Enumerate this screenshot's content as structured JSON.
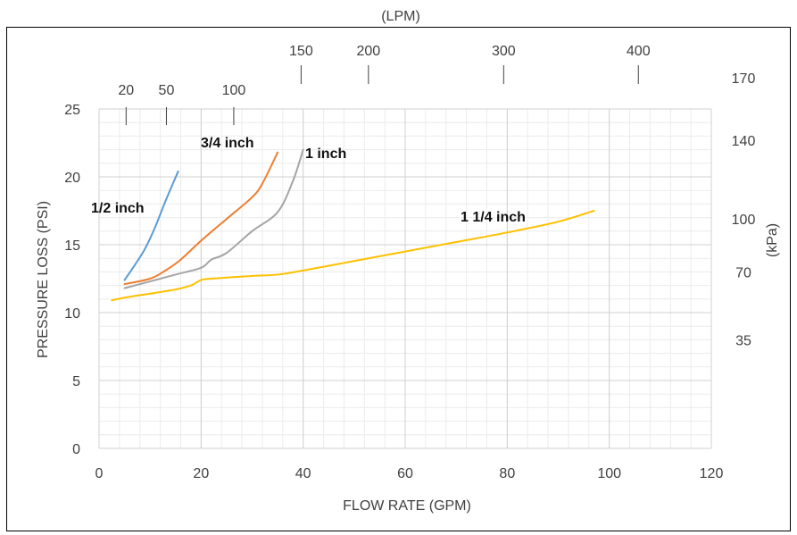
{
  "chart_data": {
    "type": "line",
    "title": "",
    "xlabel": "FLOW RATE (GPM)",
    "ylabel": "PRESSURE LOSS (PSI)",
    "xlim": [
      0,
      120
    ],
    "ylim": [
      0,
      25
    ],
    "x_ticks": [
      0,
      20,
      40,
      60,
      80,
      100,
      120
    ],
    "y_ticks": [
      0,
      5,
      10,
      15,
      20,
      25
    ],
    "grid": true,
    "legend": "none",
    "secondary_x": {
      "label": "(LPM)",
      "ticks": [
        {
          "label": "20",
          "gpm": 5.3
        },
        {
          "label": "50",
          "gpm": 13.2
        },
        {
          "label": "100",
          "gpm": 26.4
        },
        {
          "label": "150",
          "gpm": 39.6
        },
        {
          "label": "200",
          "gpm": 52.8
        },
        {
          "label": "300",
          "gpm": 79.3
        },
        {
          "label": "400",
          "gpm": 105.7
        }
      ]
    },
    "secondary_y": {
      "label": "(kPa)",
      "ticks": [
        {
          "label": "35",
          "psi": 8.0
        },
        {
          "label": "70",
          "psi": 13.0
        },
        {
          "label": "100",
          "psi": 16.9
        },
        {
          "label": "140",
          "psi": 22.7
        },
        {
          "label": "170",
          "psi": 27.3
        }
      ]
    },
    "series": [
      {
        "name": "1/2 inch",
        "color": "#5B9BD5",
        "x": [
          5,
          7,
          9,
          11,
          13,
          15.5
        ],
        "y": [
          12.4,
          13.5,
          14.7,
          16.3,
          18.2,
          20.4
        ]
      },
      {
        "name": "3/4 inch",
        "color": "#ED7D31",
        "x": [
          5,
          10,
          13,
          16,
          20,
          25,
          30,
          32,
          35
        ],
        "y": [
          12.1,
          12.5,
          13.1,
          13.9,
          15.3,
          16.9,
          18.5,
          19.5,
          21.8
        ]
      },
      {
        "name": "1 inch",
        "color": "#A5A5A5",
        "x": [
          5,
          10,
          15,
          20,
          22,
          25,
          30,
          35,
          38,
          40
        ],
        "y": [
          11.8,
          12.3,
          12.8,
          13.3,
          13.9,
          14.4,
          16.0,
          17.4,
          19.7,
          22.0
        ]
      },
      {
        "name": "1 1/4 inch",
        "color": "#FFC000",
        "x": [
          2.5,
          5,
          10,
          15,
          18,
          20,
          22,
          30,
          35,
          40,
          50,
          60,
          70,
          80,
          90,
          97
        ],
        "y": [
          10.9,
          11.1,
          11.4,
          11.7,
          12.0,
          12.4,
          12.5,
          12.7,
          12.8,
          13.1,
          13.8,
          14.5,
          15.2,
          15.9,
          16.7,
          17.5
        ]
      }
    ]
  }
}
